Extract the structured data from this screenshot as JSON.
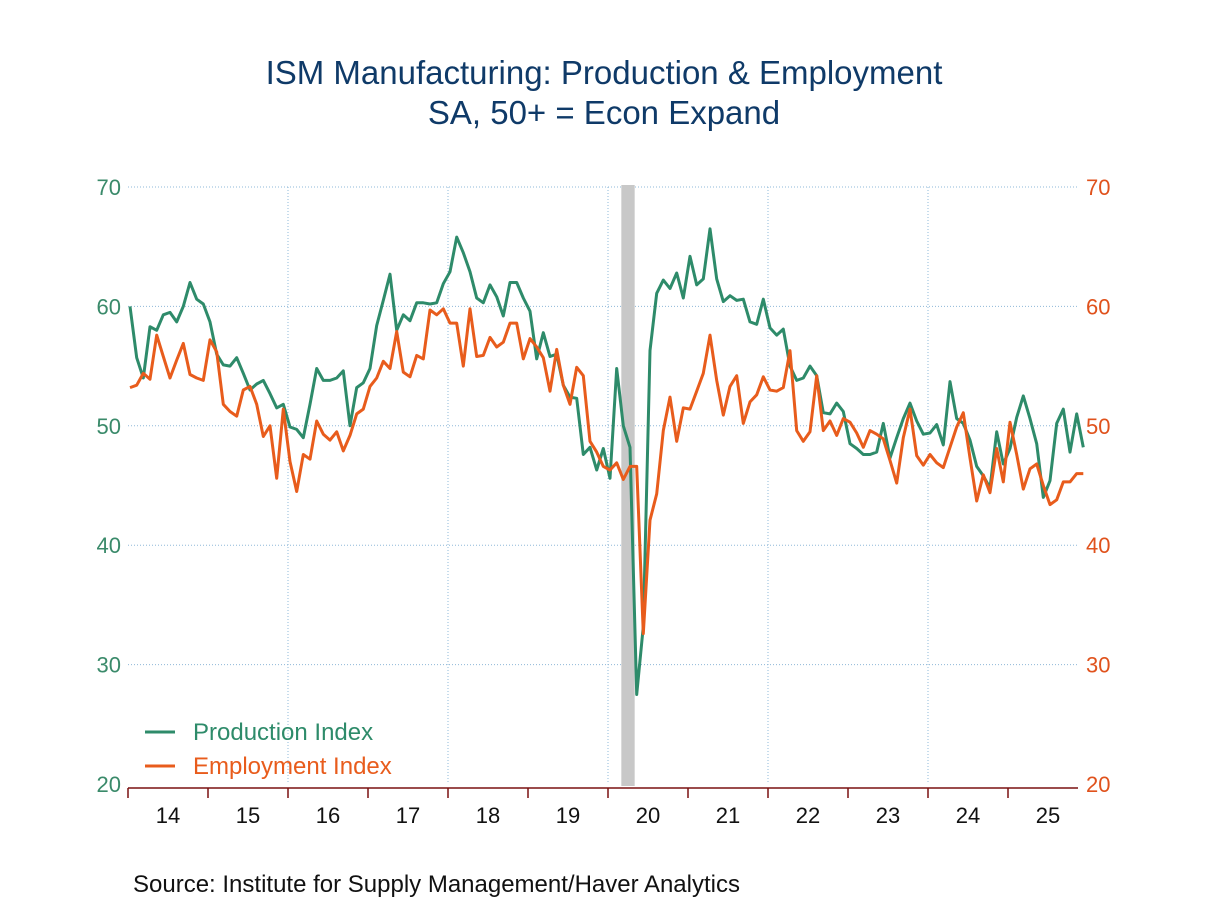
{
  "chart_data": {
    "type": "line",
    "title": "ISM Manufacturing: Production & Employment",
    "subtitle": "SA, 50+ = Econ Expand",
    "source": "Source:  Institute for Supply Management/Haver Analytics",
    "xlabel": "",
    "ylabel_left": "",
    "ylabel_right": "",
    "x_start": "2014-01",
    "x_end": "2025-10",
    "frequency": "monthly",
    "x_ticks": [
      "14",
      "15",
      "16",
      "17",
      "18",
      "19",
      "20",
      "21",
      "22",
      "23",
      "24",
      "25"
    ],
    "y_ticks_left": [
      "70",
      "60",
      "50",
      "40",
      "30",
      "20"
    ],
    "y_ticks_right": [
      "70",
      "60",
      "50",
      "40",
      "30",
      "20"
    ],
    "ylim": [
      20,
      70
    ],
    "grid": true,
    "legend_position": "bottom-left",
    "recession_shading": {
      "start": "2020-03",
      "end": "2020-04",
      "color": "#c8c8c8"
    },
    "series": [
      {
        "name": "Production Index",
        "color": "#2e8b6a",
        "values": [
          60.0,
          55.7,
          54.0,
          58.3,
          58.0,
          59.3,
          59.5,
          58.7,
          60.0,
          62.0,
          60.6,
          60.2,
          58.7,
          56.0,
          55.1,
          55.0,
          55.7,
          54.4,
          53.0,
          53.5,
          53.8,
          52.7,
          51.5,
          51.8,
          49.9,
          49.7,
          49.0,
          51.8,
          54.8,
          53.8,
          53.8,
          54.0,
          54.6,
          50.0,
          53.2,
          53.6,
          54.8,
          58.4,
          60.5,
          62.7,
          58.0,
          59.3,
          58.8,
          60.3,
          60.3,
          60.2,
          60.3,
          61.9,
          62.9,
          65.8,
          64.5,
          62.9,
          60.7,
          60.3,
          61.8,
          60.8,
          59.2,
          62.0,
          62.0,
          60.7,
          59.6,
          55.6,
          57.8,
          55.8,
          56.0,
          53.4,
          52.4,
          52.3,
          47.6,
          48.2,
          46.3,
          48.1,
          45.6,
          54.8,
          50.0,
          48.2,
          27.5,
          33.2,
          56.3,
          61.1,
          62.2,
          61.5,
          62.8,
          60.7,
          64.2,
          61.8,
          62.3,
          66.5,
          62.3,
          60.4,
          60.9,
          60.5,
          60.6,
          58.7,
          58.5,
          60.6,
          58.2,
          57.6,
          58.1,
          55.0,
          53.8,
          54.0,
          55.0,
          54.2,
          51.1,
          51.0,
          51.9,
          51.2,
          48.5,
          48.1,
          47.6,
          47.6,
          47.8,
          50.2,
          47.3,
          49.0,
          50.6,
          51.9,
          50.4,
          49.3,
          49.4,
          50.1,
          48.4,
          53.7,
          50.6,
          50.2,
          48.8,
          46.6,
          45.8,
          44.8,
          49.5,
          46.8,
          48.1,
          50.7,
          52.5,
          50.6,
          48.5,
          44.0,
          45.4,
          50.2,
          51.4,
          47.8,
          51.0,
          48.2
        ]
      },
      {
        "name": "Employment Index",
        "color": "#e85c1c",
        "values": [
          53.2,
          53.4,
          54.4,
          53.9,
          57.6,
          55.8,
          54.0,
          55.5,
          56.9,
          54.3,
          54.0,
          53.8,
          57.2,
          56.2,
          51.8,
          51.2,
          50.8,
          53.0,
          53.3,
          51.8,
          49.1,
          50.0,
          45.6,
          51.4,
          47.0,
          44.5,
          47.6,
          47.2,
          50.4,
          49.3,
          48.8,
          49.5,
          47.9,
          49.2,
          51.0,
          51.4,
          53.3,
          54.0,
          55.4,
          54.8,
          57.9,
          54.5,
          54.1,
          55.9,
          55.6,
          59.7,
          59.3,
          59.8,
          58.6,
          58.6,
          55.0,
          59.8,
          55.8,
          55.9,
          57.4,
          56.6,
          57.0,
          58.6,
          58.6,
          55.6,
          57.3,
          56.6,
          55.7,
          52.9,
          56.4,
          53.4,
          51.8,
          54.9,
          54.2,
          48.7,
          47.8,
          46.6,
          46.3,
          46.9,
          45.5,
          46.6,
          46.6,
          32.6,
          42.1,
          44.3,
          49.6,
          52.4,
          48.7,
          51.5,
          51.4,
          52.9,
          54.4,
          57.6,
          53.8,
          50.9,
          53.3,
          54.2,
          50.2,
          52.0,
          52.6,
          54.1,
          53.0,
          52.9,
          53.2,
          56.3,
          49.6,
          48.7,
          49.5,
          54.2,
          49.6,
          50.4,
          49.2,
          50.6,
          50.3,
          49.4,
          48.2,
          49.6,
          49.3,
          48.9,
          47.1,
          45.2,
          49.0,
          51.4,
          47.5,
          46.7,
          47.6,
          46.9,
          46.5,
          48.2,
          49.9,
          51.1,
          47.3,
          43.7,
          45.9,
          44.4,
          48.1,
          45.3,
          50.3,
          47.6,
          44.7,
          46.4,
          46.8,
          45.0,
          43.4,
          43.8,
          45.3,
          45.3,
          46.0,
          46.0
        ]
      }
    ]
  },
  "legend": {
    "items": [
      "Production Index",
      "Employment Index"
    ]
  }
}
